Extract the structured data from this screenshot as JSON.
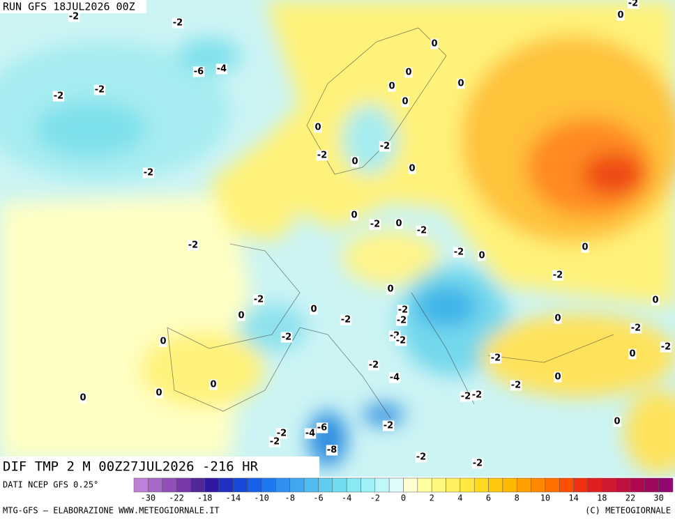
{
  "header": {
    "run": "RUN GFS 18JUL2026 00Z",
    "field": "DIF TMP 2 M 00Z27JUL2026 -216 HR"
  },
  "footer": {
    "source": "DATI NCEP GFS 0.25°",
    "credit": "MTG-GFS — ELABORAZIONE WWW.METEOGIORNALE.IT",
    "copyright": "(C) METEOGIORNALE"
  },
  "colorbar": {
    "colors": [
      "#c080d8",
      "#a868c8",
      "#9050b8",
      "#7838a8",
      "#502898",
      "#3018a0",
      "#2030c0",
      "#1848d8",
      "#1860e8",
      "#2078f0",
      "#3090f0",
      "#40a8f0",
      "#50bcf0",
      "#60ccf0",
      "#70dcf0",
      "#88e8f4",
      "#a0f0f8",
      "#c0f8f8",
      "#e0fcfc",
      "#ffffd0",
      "#ffffa0",
      "#fff880",
      "#fff060",
      "#ffe840",
      "#ffd820",
      "#ffc810",
      "#ffb800",
      "#ffa000",
      "#ff8800",
      "#ff7000",
      "#ff5000",
      "#f03010",
      "#e02020",
      "#d01830",
      "#c01040",
      "#b00850",
      "#a00860",
      "#900870"
    ],
    "labels": [
      -30,
      -22,
      -18,
      -14,
      -10,
      -8,
      -6,
      -4,
      -2,
      0,
      2,
      4,
      6,
      8,
      10,
      14,
      18,
      22,
      30
    ]
  },
  "map": {
    "contour_labels": [
      -2,
      -2,
      0,
      0,
      -2,
      -6,
      -4,
      -2,
      -2,
      0,
      0,
      0,
      0,
      0,
      -2,
      -2,
      0,
      -2,
      0,
      0,
      -2,
      0,
      -2,
      -2,
      -2,
      0,
      0,
      -2,
      0,
      -2,
      0,
      -2,
      0,
      -2,
      -2,
      0,
      0,
      -2,
      -2,
      -2,
      -2,
      0,
      -2,
      0,
      -2,
      -2,
      0,
      -4,
      0,
      -2,
      0,
      0,
      -2,
      -2,
      -2,
      0,
      -2,
      -2,
      -6,
      -4,
      -8,
      -2,
      -2
    ]
  }
}
